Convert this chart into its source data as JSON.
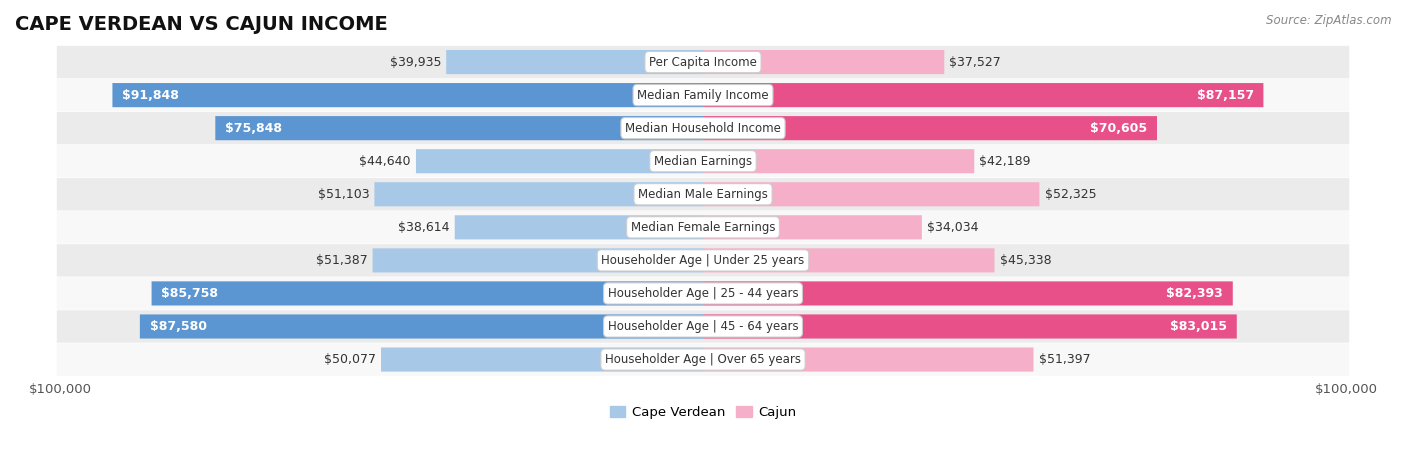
{
  "title": "CAPE VERDEAN VS CAJUN INCOME",
  "source": "Source: ZipAtlas.com",
  "categories": [
    "Per Capita Income",
    "Median Family Income",
    "Median Household Income",
    "Median Earnings",
    "Median Male Earnings",
    "Median Female Earnings",
    "Householder Age | Under 25 years",
    "Householder Age | 25 - 44 years",
    "Householder Age | 45 - 64 years",
    "Householder Age | Over 65 years"
  ],
  "cape_verdean": [
    39935,
    91848,
    75848,
    44640,
    51103,
    38614,
    51387,
    85758,
    87580,
    50077
  ],
  "cajun": [
    37527,
    87157,
    70605,
    42189,
    52325,
    34034,
    45338,
    82393,
    83015,
    51397
  ],
  "max_val": 100000,
  "color_cv_light": "#a8c8e8",
  "color_cv_dark": "#5b96d2",
  "color_cajun_light": "#f5afc8",
  "color_cajun_dark": "#e8508a",
  "cv_threshold": 60000,
  "cajun_threshold": 60000,
  "bar_height": 0.72,
  "row_bg": "#ebebeb",
  "row_bg2": "#f8f8f8",
  "axis_label_fontsize": 9.5,
  "bar_label_fontsize": 9,
  "title_fontsize": 14,
  "category_fontsize": 8.5,
  "legend_fontsize": 9.5,
  "source_fontsize": 8.5
}
